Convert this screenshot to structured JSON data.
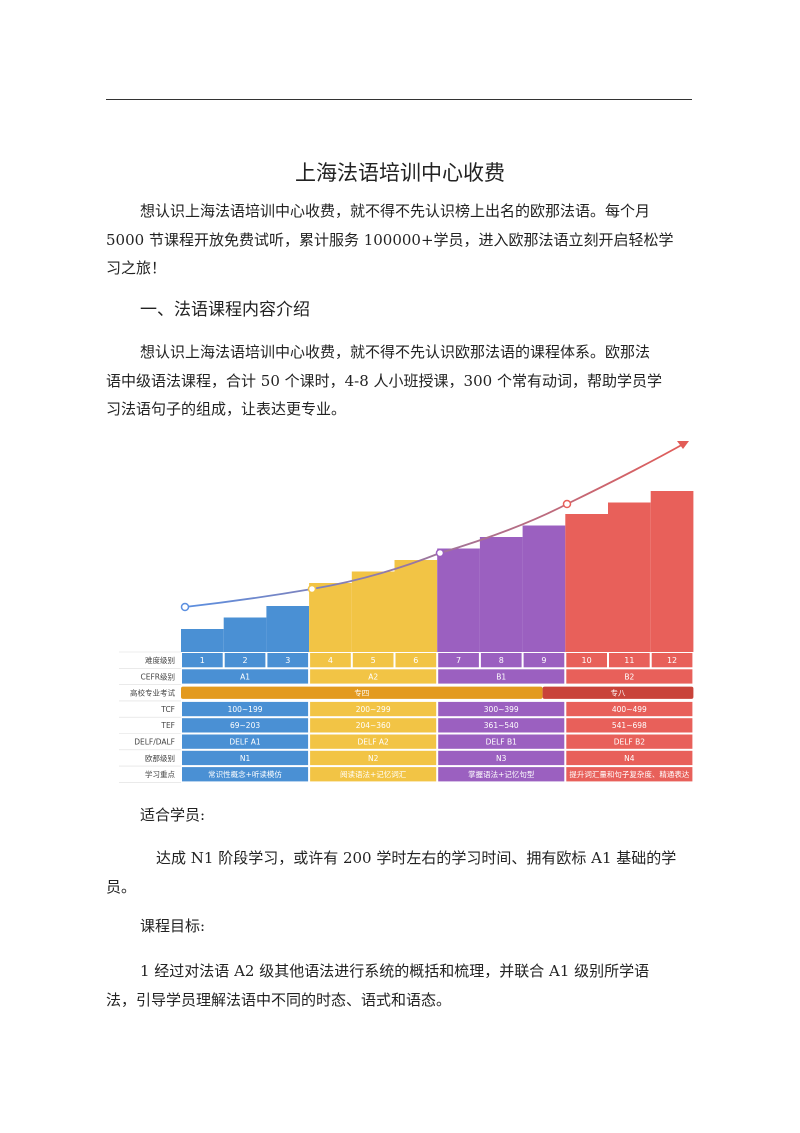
{
  "doc": {
    "title": "上海法语培训中心收费",
    "intro_lines": [
      "想认识上海法语培训中心收费，就不得不先认识榜上出名的欧那法语。每个月",
      "5000 节课程开放免费试听，累计服务 100000+学员，进入欧那法语立刻开启轻松学",
      "习之旅！"
    ],
    "section1_heading": "一、法语课程内容介绍",
    "section1_lines": [
      "想认识上海法语培训中心收费，就不得不先认识欧那法语的课程体系。欧那法",
      "语中级语法课程，合计 50 个课时，4-8 人小班授课，300 个常有动词，帮助学员学",
      "习法语句子的组成，让表达更专业。"
    ],
    "suitable_label": "适合学员:",
    "suitable_lines": [
      "达成 N1 阶段学习，或许有 200 学时左右的学习时间、拥有欧标 A1 基础的学",
      "员。"
    ],
    "goal_label": "课程目标:",
    "goal_lines": [
      "1 经过对法语 A2 级其他语法进行系统的概括和梳理，并联合 A1 级别所学语",
      "法，引导学员理解法语中不同的时态、语式和语态。"
    ]
  },
  "chart_data": {
    "type": "bar",
    "categories": [
      "1",
      "2",
      "3",
      "4",
      "5",
      "6",
      "7",
      "8",
      "9",
      "10",
      "11",
      "12"
    ],
    "values": [
      2,
      3,
      4,
      6,
      7,
      8,
      9,
      10,
      11,
      12,
      13,
      14
    ],
    "colors": {
      "A1": "#4a90d4",
      "A2": "#f2c445",
      "B1": "#9b60c0",
      "B2": "#e8605a",
      "line_start": "#5b8fe0",
      "line_end": "#e25c57",
      "exam_orange": "#e39a1f",
      "exam_red": "#c9433a"
    },
    "row_labels": [
      "难度级别",
      "CEFR级别",
      "高校专业考试",
      "TCF",
      "TEF",
      "DELF/DALF",
      "欧那级别",
      "学习重点"
    ],
    "cefr": [
      "A1",
      "A2",
      "B1",
      "B2"
    ],
    "exam": [
      "专四",
      "专八"
    ],
    "tcf": [
      "100~199",
      "200~299",
      "300~399",
      "400~499"
    ],
    "tef": [
      "69~203",
      "204~360",
      "361~540",
      "541~698"
    ],
    "delf": [
      "DELF A1",
      "DELF A2",
      "DELF B1",
      "DELF B2"
    ],
    "ouna": [
      "N1",
      "N2",
      "N3",
      "N4"
    ],
    "focus": [
      "常识性概念+听读模仿",
      "阅读语法+记忆词汇",
      "掌握语法+记忆句型",
      "提升词汇量和句子复杂度、精通表达"
    ]
  }
}
